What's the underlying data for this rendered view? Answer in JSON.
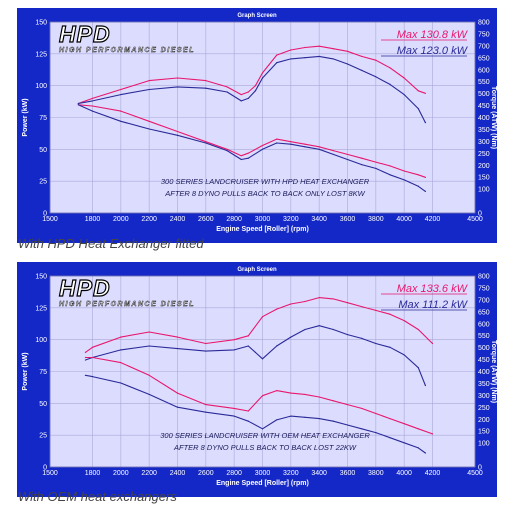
{
  "colors": {
    "frame": "#1428c8",
    "plot_bg": "#dcdcff",
    "grid": "#a8a8d8",
    "power_series": "#e8186c",
    "torque_series": "#2a2a98",
    "text_dark": "#000000",
    "text_light": "#ffffff",
    "logo_fill": "#ffffff",
    "logo_outline": "#000000"
  },
  "chart_data": [
    {
      "type": "line",
      "window_title": "Graph Screen",
      "logo_text": "HPD",
      "logo_subtitle": "HIGH PERFORMANCE DIESEL",
      "xlabel": "Engine Speed [Roller] (rpm)",
      "ylabel": "Power (kW)",
      "y2label": "Torque (ATW) (Nm)",
      "xlim": [
        1500,
        4500
      ],
      "ylim": [
        0,
        150
      ],
      "y2lim": [
        0,
        800
      ],
      "xticks": [
        1500,
        1800,
        2000,
        2200,
        2400,
        2600,
        2800,
        3000,
        3200,
        3400,
        3600,
        3800,
        4000,
        4200,
        4500
      ],
      "yticks": [
        0,
        25,
        50,
        75,
        100,
        125,
        150
      ],
      "y2ticks": [
        0,
        100,
        150,
        200,
        250,
        300,
        350,
        400,
        450,
        500,
        550,
        600,
        650,
        700,
        750,
        800
      ],
      "grid": true,
      "legend": [
        {
          "label": "Max 130.8 kW",
          "color": "#e8186c"
        },
        {
          "label": "Max 123.0 kW",
          "color": "#2a2a98"
        }
      ],
      "annotation": [
        "300 SERIES LANDCRUISER WITH HPD HEAT EXCHANGER",
        "AFTER 8 DYNO PULLS BACK TO BACK ONLY LOST 8KW"
      ],
      "series": [
        {
          "name": "Max 130.8 kW",
          "quantity": "power",
          "color": "#e8186c",
          "x": [
            1700,
            1800,
            2000,
            2200,
            2400,
            2600,
            2750,
            2850,
            2900,
            2950,
            3000,
            3100,
            3200,
            3300,
            3400,
            3500,
            3600,
            3700,
            3800,
            3900,
            4000,
            4100,
            4150
          ],
          "y": [
            86,
            90,
            97,
            104,
            106,
            104,
            99,
            93,
            95,
            100,
            110,
            124,
            128,
            130,
            131,
            129,
            127,
            123,
            120,
            114,
            106,
            96,
            94
          ]
        },
        {
          "name": "Max 123.0 kW",
          "quantity": "power",
          "color": "#2a2a98",
          "x": [
            1700,
            1800,
            2000,
            2200,
            2400,
            2600,
            2750,
            2850,
            2900,
            2950,
            3000,
            3100,
            3200,
            3300,
            3400,
            3500,
            3600,
            3700,
            3800,
            3900,
            4000,
            4100,
            4150
          ],
          "y": [
            86,
            88,
            93,
            97,
            99,
            98,
            95,
            88,
            90,
            96,
            106,
            118,
            121,
            122,
            123,
            121,
            117,
            112,
            107,
            101,
            93,
            82,
            71
          ]
        },
        {
          "name": "Max 130.8 kW",
          "quantity": "torque",
          "color": "#e8186c",
          "x": [
            1700,
            1800,
            2000,
            2200,
            2400,
            2600,
            2750,
            2850,
            2900,
            3000,
            3100,
            3200,
            3300,
            3400,
            3500,
            3600,
            3700,
            3800,
            3900,
            4000,
            4100,
            4150
          ],
          "y": [
            85,
            84,
            80,
            72,
            64,
            56,
            50,
            45,
            47,
            53,
            58,
            56,
            54,
            52,
            49,
            46,
            43,
            40,
            37,
            33,
            30,
            28
          ]
        },
        {
          "name": "Max 123.0 kW",
          "quantity": "torque",
          "color": "#2a2a98",
          "x": [
            1700,
            1800,
            2000,
            2200,
            2400,
            2600,
            2750,
            2850,
            2900,
            3000,
            3100,
            3200,
            3300,
            3400,
            3500,
            3600,
            3700,
            3800,
            3900,
            4000,
            4100,
            4150
          ],
          "y": [
            85,
            80,
            72,
            66,
            61,
            55,
            49,
            42,
            43,
            50,
            55,
            54,
            52,
            50,
            46,
            42,
            38,
            35,
            30,
            26,
            21,
            17
          ]
        }
      ]
    },
    {
      "type": "line",
      "window_title": "Graph Screen",
      "logo_text": "HPD",
      "logo_subtitle": "HIGH PERFORMANCE DIESEL",
      "xlabel": "Engine Speed [Roller] (rpm)",
      "ylabel": "Power (kW)",
      "y2label": "Torque (ATW) (Nm)",
      "xlim": [
        1500,
        4500
      ],
      "ylim": [
        0,
        150
      ],
      "y2lim": [
        0,
        800
      ],
      "xticks": [
        1500,
        1800,
        2000,
        2200,
        2400,
        2600,
        2800,
        3000,
        3200,
        3400,
        3600,
        3800,
        4000,
        4200,
        4500
      ],
      "yticks": [
        0,
        25,
        50,
        75,
        100,
        125,
        150
      ],
      "y2ticks": [
        0,
        100,
        150,
        200,
        250,
        300,
        350,
        400,
        450,
        500,
        550,
        600,
        650,
        700,
        750,
        800
      ],
      "grid": true,
      "legend": [
        {
          "label": "Max 133.6 kW",
          "color": "#e8186c"
        },
        {
          "label": "Max 111.2 kW",
          "color": "#2a2a98"
        }
      ],
      "annotation": [
        "300 SERIES LANDCRUISER WITH OEM HEAT EXCHANGER",
        "AFTER 8 DYNO PULLS BACK TO BACK LOST 22KW"
      ],
      "series": [
        {
          "name": "Max 133.6 kW",
          "quantity": "power",
          "color": "#e8186c",
          "x": [
            1750,
            1800,
            2000,
            2200,
            2400,
            2600,
            2800,
            2900,
            3000,
            3100,
            3200,
            3300,
            3400,
            3500,
            3600,
            3700,
            3800,
            3900,
            4000,
            4100,
            4200
          ],
          "y": [
            90,
            94,
            102,
            106,
            102,
            97,
            100,
            103,
            118,
            124,
            128,
            130,
            133,
            132,
            129,
            126,
            123,
            120,
            115,
            108,
            97
          ]
        },
        {
          "name": "Max 111.2 kW",
          "quantity": "power",
          "color": "#2a2a98",
          "x": [
            1750,
            1800,
            2000,
            2200,
            2400,
            2600,
            2800,
            2900,
            2950,
            3000,
            3100,
            3200,
            3300,
            3400,
            3500,
            3600,
            3700,
            3800,
            3900,
            4000,
            4100,
            4150
          ],
          "y": [
            84,
            86,
            92,
            95,
            93,
            91,
            92,
            95,
            90,
            85,
            95,
            102,
            108,
            111,
            108,
            104,
            101,
            97,
            94,
            88,
            78,
            64
          ]
        },
        {
          "name": "Max 133.6 kW",
          "quantity": "torque",
          "color": "#e8186c",
          "x": [
            1750,
            1800,
            2000,
            2200,
            2400,
            2600,
            2800,
            2900,
            3000,
            3100,
            3200,
            3300,
            3400,
            3500,
            3600,
            3700,
            3800,
            3900,
            4000,
            4100,
            4200
          ],
          "y": [
            86,
            86,
            82,
            72,
            58,
            49,
            46,
            44,
            56,
            60,
            58,
            57,
            55,
            52,
            49,
            46,
            42,
            38,
            34,
            30,
            26
          ]
        },
        {
          "name": "Max 111.2 kW",
          "quantity": "torque",
          "color": "#2a2a98",
          "x": [
            1750,
            1800,
            2000,
            2200,
            2400,
            2600,
            2800,
            2900,
            3000,
            3100,
            3200,
            3300,
            3400,
            3500,
            3600,
            3700,
            3800,
            3900,
            4000,
            4100,
            4150
          ],
          "y": [
            72,
            71,
            66,
            57,
            47,
            43,
            40,
            36,
            30,
            37,
            40,
            39,
            38,
            36,
            33,
            30,
            27,
            23,
            19,
            15,
            11
          ]
        }
      ]
    }
  ],
  "captions": [
    "With HPD Heat Exchanger fitted",
    "With OEM heat exchangers"
  ]
}
